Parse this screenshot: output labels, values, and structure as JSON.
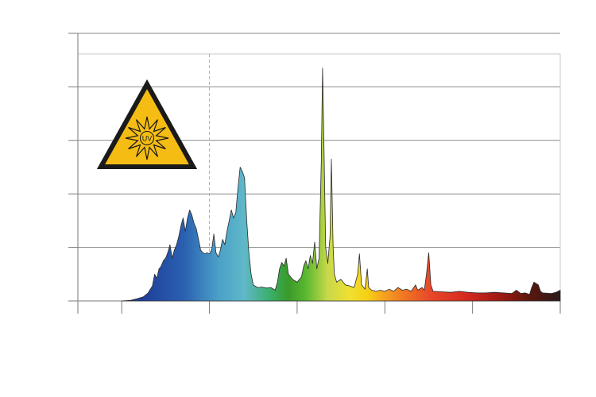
{
  "warning_sign": {
    "icon": "uv-radiation-warning-icon",
    "text": "UV",
    "fill": "#f5bd14",
    "border": "#1a1a1a"
  },
  "colors": {
    "axis": "#7a7a7a",
    "grid": "#8a8a8a",
    "marker_line": "#b0b0b0",
    "spectrum_outline": "#2a2a2a"
  },
  "chart_data": {
    "type": "area",
    "title": "",
    "xlabel": "",
    "ylabel": "",
    "xlim": [
      0,
      11
    ],
    "ylim": [
      0,
      5
    ],
    "x_ticks": [
      0,
      1,
      3,
      5,
      7,
      9,
      11
    ],
    "y_gridlines": [
      1,
      2,
      3,
      4,
      5
    ],
    "grid": true,
    "legend": "none",
    "marker_x": 3,
    "series": [
      {
        "points": [
          [
            1,
            0
          ],
          [
            1.2,
            0.01
          ],
          [
            1.35,
            0.04
          ],
          [
            1.5,
            0.08
          ],
          [
            1.6,
            0.15
          ],
          [
            1.7,
            0.28
          ],
          [
            1.75,
            0.5
          ],
          [
            1.8,
            0.42
          ],
          [
            1.85,
            0.6
          ],
          [
            1.9,
            0.65
          ],
          [
            1.95,
            0.75
          ],
          [
            2.0,
            0.8
          ],
          [
            2.05,
            0.9
          ],
          [
            2.1,
            1.05
          ],
          [
            2.15,
            0.8
          ],
          [
            2.2,
            0.95
          ],
          [
            2.25,
            1.05
          ],
          [
            2.3,
            1.2
          ],
          [
            2.35,
            1.4
          ],
          [
            2.4,
            1.55
          ],
          [
            2.45,
            1.3
          ],
          [
            2.5,
            1.55
          ],
          [
            2.55,
            1.7
          ],
          [
            2.6,
            1.6
          ],
          [
            2.65,
            1.45
          ],
          [
            2.7,
            1.35
          ],
          [
            2.75,
            1.15
          ],
          [
            2.8,
            0.95
          ],
          [
            2.85,
            0.9
          ],
          [
            2.9,
            0.88
          ],
          [
            2.95,
            0.9
          ],
          [
            3.0,
            0.88
          ],
          [
            3.05,
            0.95
          ],
          [
            3.1,
            1.25
          ],
          [
            3.15,
            0.9
          ],
          [
            3.2,
            0.82
          ],
          [
            3.25,
            0.95
          ],
          [
            3.3,
            1.15
          ],
          [
            3.35,
            1.05
          ],
          [
            3.4,
            1.3
          ],
          [
            3.45,
            1.5
          ],
          [
            3.5,
            1.7
          ],
          [
            3.55,
            1.55
          ],
          [
            3.6,
            1.65
          ],
          [
            3.65,
            2.1
          ],
          [
            3.7,
            2.5
          ],
          [
            3.75,
            2.42
          ],
          [
            3.8,
            2.3
          ],
          [
            3.85,
            1.5
          ],
          [
            3.9,
            0.9
          ],
          [
            3.95,
            0.5
          ],
          [
            4.0,
            0.3
          ],
          [
            4.1,
            0.25
          ],
          [
            4.2,
            0.26
          ],
          [
            4.3,
            0.24
          ],
          [
            4.4,
            0.25
          ],
          [
            4.5,
            0.2
          ],
          [
            4.55,
            0.35
          ],
          [
            4.6,
            0.6
          ],
          [
            4.65,
            0.72
          ],
          [
            4.7,
            0.65
          ],
          [
            4.75,
            0.8
          ],
          [
            4.8,
            0.5
          ],
          [
            4.9,
            0.4
          ],
          [
            5.0,
            0.35
          ],
          [
            5.1,
            0.45
          ],
          [
            5.15,
            0.65
          ],
          [
            5.2,
            0.75
          ],
          [
            5.25,
            0.6
          ],
          [
            5.3,
            0.85
          ],
          [
            5.35,
            0.7
          ],
          [
            5.4,
            1.1
          ],
          [
            5.45,
            0.6
          ],
          [
            5.5,
            0.8
          ],
          [
            5.55,
            2.6
          ],
          [
            5.58,
            4.35
          ],
          [
            5.6,
            3.5
          ],
          [
            5.65,
            1.0
          ],
          [
            5.7,
            0.7
          ],
          [
            5.75,
            1.2
          ],
          [
            5.78,
            2.65
          ],
          [
            5.82,
            1.0
          ],
          [
            5.85,
            0.5
          ],
          [
            5.9,
            0.35
          ],
          [
            5.95,
            0.38
          ],
          [
            6.0,
            0.4
          ],
          [
            6.05,
            0.35
          ],
          [
            6.1,
            0.3
          ],
          [
            6.2,
            0.28
          ],
          [
            6.3,
            0.25
          ],
          [
            6.38,
            0.5
          ],
          [
            6.42,
            0.88
          ],
          [
            6.47,
            0.3
          ],
          [
            6.55,
            0.22
          ],
          [
            6.6,
            0.6
          ],
          [
            6.63,
            0.25
          ],
          [
            6.7,
            0.2
          ],
          [
            6.8,
            0.18
          ],
          [
            6.9,
            0.2
          ],
          [
            7.0,
            0.18
          ],
          [
            7.1,
            0.22
          ],
          [
            7.2,
            0.18
          ],
          [
            7.3,
            0.25
          ],
          [
            7.4,
            0.2
          ],
          [
            7.5,
            0.22
          ],
          [
            7.6,
            0.18
          ],
          [
            7.7,
            0.3
          ],
          [
            7.75,
            0.2
          ],
          [
            7.85,
            0.25
          ],
          [
            7.9,
            0.2
          ],
          [
            7.95,
            0.5
          ],
          [
            8.0,
            0.9
          ],
          [
            8.05,
            0.3
          ],
          [
            8.1,
            0.18
          ],
          [
            8.3,
            0.17
          ],
          [
            8.5,
            0.16
          ],
          [
            8.7,
            0.18
          ],
          [
            8.9,
            0.16
          ],
          [
            9.1,
            0.15
          ],
          [
            9.3,
            0.15
          ],
          [
            9.5,
            0.16
          ],
          [
            9.7,
            0.15
          ],
          [
            9.9,
            0.14
          ],
          [
            10.0,
            0.2
          ],
          [
            10.1,
            0.14
          ],
          [
            10.2,
            0.15
          ],
          [
            10.3,
            0.12
          ],
          [
            10.35,
            0.25
          ],
          [
            10.4,
            0.35
          ],
          [
            10.5,
            0.3
          ],
          [
            10.55,
            0.18
          ],
          [
            10.6,
            0.15
          ],
          [
            10.8,
            0.14
          ],
          [
            10.9,
            0.16
          ],
          [
            11.0,
            0.2
          ]
        ]
      }
    ],
    "gradient_stops": [
      [
        "#1a2f8f",
        0.0
      ],
      [
        "#2a5fb0",
        0.14
      ],
      [
        "#4aa0c8",
        0.22
      ],
      [
        "#5fb8c8",
        0.28
      ],
      [
        "#3aae68",
        0.34
      ],
      [
        "#3a9a2a",
        0.38
      ],
      [
        "#5ab830",
        0.42
      ],
      [
        "#c8d84a",
        0.47
      ],
      [
        "#f0e030",
        0.52
      ],
      [
        "#f6d014",
        0.56
      ],
      [
        "#f5a020",
        0.6
      ],
      [
        "#f07a22",
        0.64
      ],
      [
        "#e84a2a",
        0.7
      ],
      [
        "#d82a20",
        0.78
      ],
      [
        "#a01a14",
        0.86
      ],
      [
        "#5a160c",
        0.93
      ],
      [
        "#2a1a1a",
        1.0
      ]
    ]
  }
}
